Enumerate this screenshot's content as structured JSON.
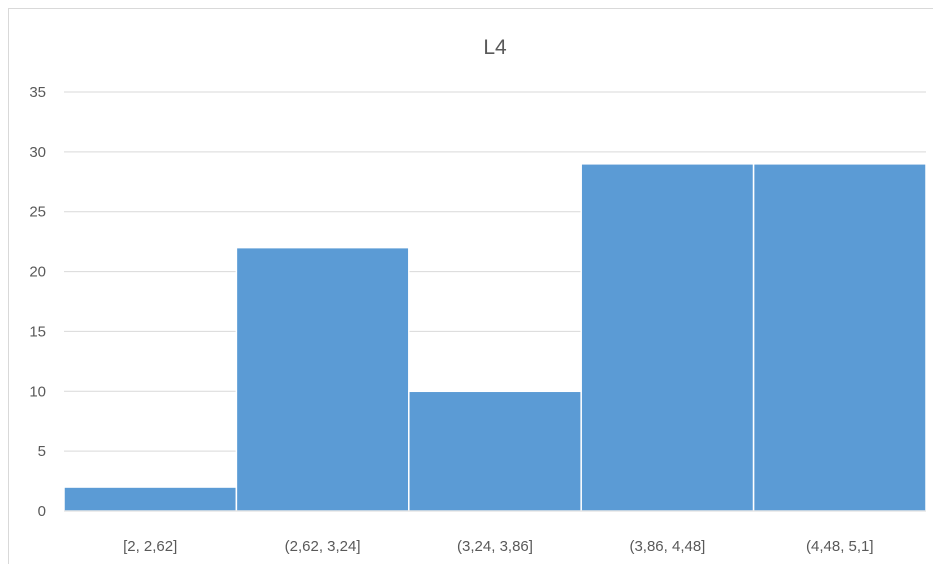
{
  "chart_data": {
    "type": "bar",
    "title": "L4",
    "xlabel": "",
    "ylabel": "",
    "categories": [
      "[2, 2,62]",
      "(2,62, 3,24]",
      "(3,24, 3,86]",
      "(3,86, 4,48]",
      "(4,48, 5,1]"
    ],
    "values": [
      2,
      22,
      10,
      29,
      29
    ],
    "ylim": [
      0,
      35
    ],
    "yticks": [
      "0",
      "5",
      "10",
      "15",
      "20",
      "25",
      "30",
      "35"
    ],
    "grid": true,
    "legend": "none",
    "bar_color": "#5b9bd5"
  }
}
